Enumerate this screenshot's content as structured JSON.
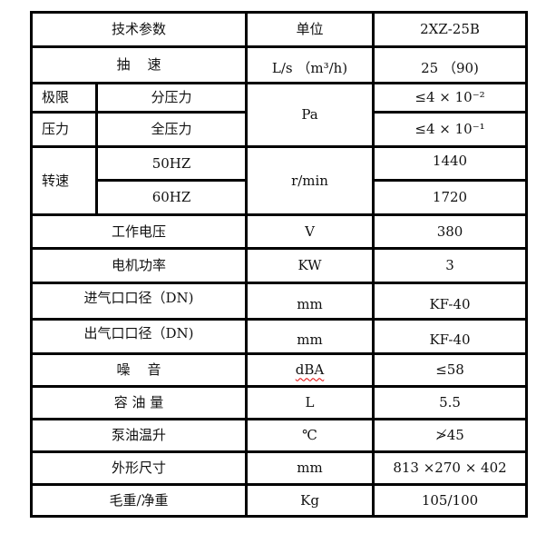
{
  "header": {
    "param": "技术参数",
    "unit": "单位",
    "model": "2XZ-25B"
  },
  "pumping_speed": {
    "label": "抽    速",
    "unit": "L/s （m³/h)",
    "value": "25 （90)"
  },
  "ultimate_pressure": {
    "group_label": "极限压力",
    "group_label_line1": "极限",
    "group_label_line2": "压力",
    "unit": "Pa",
    "partial": {
      "label": "分压力",
      "value": "≤4 × 10⁻²"
    },
    "total": {
      "label": "全压力",
      "value": "≤4 × 10⁻¹"
    }
  },
  "rotation_speed": {
    "group_label": "转速",
    "unit": "r/min",
    "hz50": {
      "label": "50HZ",
      "value": "1440"
    },
    "hz60": {
      "label": "60HZ",
      "value": "1720"
    }
  },
  "rows": [
    {
      "label": "工作电压",
      "unit": "V",
      "value": "380"
    },
    {
      "label": "电机功率",
      "unit": "KW",
      "value": "3"
    },
    {
      "label": "进气口口径（DN)",
      "unit": "mm",
      "value": "KF-40"
    },
    {
      "label": "出气口口径（DN)",
      "unit": "mm",
      "value": "KF-40"
    },
    {
      "label": "噪    音",
      "unit": "dBA",
      "value": "≤58"
    },
    {
      "label": "容 油 量",
      "unit": "L",
      "value": "5.5"
    },
    {
      "label": "泵油温升",
      "unit": "℃",
      "value": "≯45"
    },
    {
      "label": "外形尺寸",
      "unit": "mm",
      "value": "813 ×270 × 402"
    },
    {
      "label": "毛重/净重",
      "unit": "Kg",
      "value": "105/100"
    }
  ]
}
